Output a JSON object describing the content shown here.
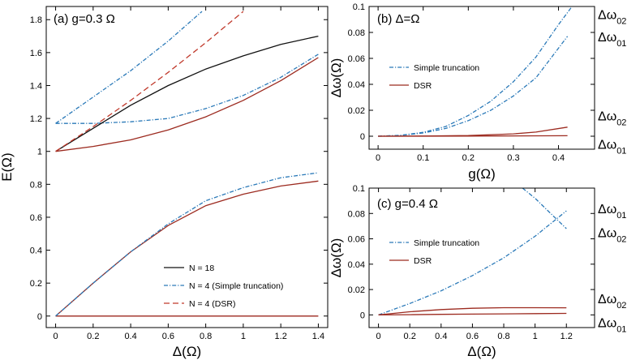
{
  "colors": {
    "black": "#111111",
    "blue": "#2a79b8",
    "red": "#c0392b",
    "darkred": "#9c2a1f"
  },
  "chart_data": [
    {
      "id": "a",
      "type": "line",
      "panel_title": "(a) g=0.3 Ω",
      "xlabel": "Δ(Ω)",
      "ylabel": "E(Ω)",
      "xlim": [
        -0.05,
        1.45
      ],
      "ylim": [
        -0.07,
        1.88
      ],
      "xticks": [
        0,
        0.2,
        0.4,
        0.6,
        0.8,
        1,
        1.2,
        1.4
      ],
      "xtick_labels": [
        "0",
        "0.2",
        "0.4",
        "0.6",
        "0.8",
        "1",
        "1.2",
        "1.4"
      ],
      "yticks": [
        0,
        0.2,
        0.4,
        0.6,
        0.8,
        1,
        1.2,
        1.4,
        1.6,
        1.8
      ],
      "ytick_labels": [
        "0",
        "0.2",
        "0.4",
        "0.6",
        "0.8",
        "1",
        "1.2",
        "1.4",
        "1.6",
        "1.8"
      ],
      "legend": {
        "position": "bottom-right",
        "entries": [
          {
            "label": "N = 18",
            "series": "N18",
            "style": "solid",
            "color": "#111111"
          },
          {
            "label": "N =  4 (Simple truncation)",
            "series": "ST",
            "style": "dashdot",
            "color": "#2a79b8"
          },
          {
            "label": "N =  4 (DSR)",
            "series": "DSR",
            "style": "dashed",
            "color": "#c0392b"
          }
        ]
      },
      "series": [
        {
          "name": "N18 ground",
          "key": "N18",
          "style": "solid",
          "color": "#9c2a1f",
          "x": [
            0,
            1.4
          ],
          "y": [
            0,
            0
          ]
        },
        {
          "name": "N18 E1",
          "key": "N18",
          "style": "solid",
          "color": "#9c2a1f",
          "x": [
            0,
            0.2,
            0.4,
            0.6,
            0.8,
            1.0,
            1.2,
            1.4
          ],
          "y": [
            0,
            0.2,
            0.39,
            0.55,
            0.67,
            0.74,
            0.79,
            0.82
          ]
        },
        {
          "name": "ST E1",
          "key": "ST",
          "style": "dashdot",
          "color": "#2a79b8",
          "x": [
            0,
            0.2,
            0.4,
            0.6,
            0.8,
            1.0,
            1.2,
            1.4
          ],
          "y": [
            0,
            0.2,
            0.39,
            0.56,
            0.7,
            0.78,
            0.84,
            0.87
          ]
        },
        {
          "name": "N18 E2",
          "key": "N18",
          "style": "solid",
          "color": "#9c2a1f",
          "x": [
            0,
            0.2,
            0.4,
            0.6,
            0.8,
            1.0,
            1.2,
            1.4
          ],
          "y": [
            1.0,
            1.03,
            1.07,
            1.13,
            1.21,
            1.31,
            1.43,
            1.57
          ]
        },
        {
          "name": "ST E2",
          "key": "ST",
          "style": "dashdot",
          "color": "#2a79b8",
          "x": [
            0,
            0.2,
            0.4,
            0.6,
            0.8,
            1.0,
            1.2,
            1.4
          ],
          "y": [
            1.17,
            1.17,
            1.18,
            1.2,
            1.26,
            1.34,
            1.45,
            1.59
          ]
        },
        {
          "name": "N18 E3",
          "key": "N18",
          "style": "solid",
          "color": "#111111",
          "x": [
            0,
            0.2,
            0.4,
            0.6,
            0.8,
            1.0,
            1.2,
            1.4
          ],
          "y": [
            1.0,
            1.14,
            1.28,
            1.4,
            1.5,
            1.58,
            1.65,
            1.7
          ]
        },
        {
          "name": "DSR E3",
          "key": "DSR",
          "style": "dashed",
          "color": "#c0392b",
          "x": [
            0,
            0.2,
            0.4,
            0.6,
            0.8,
            1.0
          ],
          "y": [
            1.0,
            1.15,
            1.31,
            1.48,
            1.66,
            1.85
          ]
        },
        {
          "name": "ST E3",
          "key": "ST",
          "style": "dashdot",
          "color": "#2a79b8",
          "x": [
            0,
            0.2,
            0.4,
            0.6,
            0.78
          ],
          "y": [
            1.17,
            1.33,
            1.49,
            1.67,
            1.85
          ]
        }
      ]
    },
    {
      "id": "b",
      "type": "line",
      "panel_title": "(b) Δ=Ω",
      "xlabel": "g(Ω)",
      "ylabel": "Δω(Ω)",
      "xlim": [
        -0.02,
        0.48
      ],
      "ylim": [
        -0.01,
        0.1
      ],
      "xticks": [
        0,
        0.1,
        0.2,
        0.3,
        0.4
      ],
      "xtick_labels": [
        "0",
        "0.1",
        "0.2",
        "0.3",
        "0.4"
      ],
      "yticks": [
        0,
        0.02,
        0.04,
        0.06,
        0.08,
        0.1
      ],
      "ytick_labels": [
        "0",
        "0.02",
        "0.04",
        "0.06",
        "0.08",
        "0.1"
      ],
      "legend": {
        "position": "middle-left",
        "entries": [
          {
            "label": "Simple truncation",
            "style": "dashdot",
            "color": "#2a79b8"
          },
          {
            "label": "DSR",
            "style": "solid",
            "color": "#9c2a1f"
          }
        ]
      },
      "end_labels": [
        "Δω02",
        "Δω01",
        "Δω02",
        "Δω01"
      ],
      "series": [
        {
          "name": "ST Δω02",
          "style": "dashdot",
          "color": "#2a79b8",
          "x": [
            0,
            0.05,
            0.1,
            0.15,
            0.2,
            0.25,
            0.3,
            0.35,
            0.4,
            0.43
          ],
          "y": [
            0,
            0.0007,
            0.003,
            0.0075,
            0.016,
            0.027,
            0.042,
            0.061,
            0.086,
            0.1
          ]
        },
        {
          "name": "ST Δω01",
          "style": "dashdot",
          "color": "#2a79b8",
          "x": [
            0,
            0.05,
            0.1,
            0.15,
            0.2,
            0.25,
            0.3,
            0.35,
            0.42
          ],
          "y": [
            0,
            0.0006,
            0.0025,
            0.006,
            0.012,
            0.02,
            0.031,
            0.045,
            0.077
          ]
        },
        {
          "name": "DSR Δω02",
          "style": "solid",
          "color": "#9c2a1f",
          "x": [
            0,
            0.1,
            0.2,
            0.3,
            0.35,
            0.42
          ],
          "y": [
            0,
            0.0001,
            0.0005,
            0.0018,
            0.0032,
            0.007
          ]
        },
        {
          "name": "DSR Δω01",
          "style": "solid",
          "color": "#9c2a1f",
          "x": [
            0,
            0.2,
            0.42
          ],
          "y": [
            0,
            0.0001,
            0.0004
          ]
        }
      ]
    },
    {
      "id": "c",
      "type": "line",
      "panel_title": "(c) g=0.4 Ω",
      "xlabel": "Δ(Ω)",
      "ylabel": "Δω(Ω)",
      "xlim": [
        -0.06,
        1.38
      ],
      "ylim": [
        -0.01,
        0.1
      ],
      "xticks": [
        0,
        0.2,
        0.4,
        0.6,
        0.8,
        1,
        1.2
      ],
      "xtick_labels": [
        "0",
        "0.2",
        "0.4",
        "0.6",
        "0.8",
        "1",
        "1.2"
      ],
      "yticks": [
        0,
        0.02,
        0.04,
        0.06,
        0.08,
        0.1
      ],
      "ytick_labels": [
        "0",
        "0.02",
        "0.04",
        "0.06",
        "0.08",
        "0.1"
      ],
      "legend": {
        "position": "middle-left",
        "entries": [
          {
            "label": "Simple truncation",
            "style": "dashdot",
            "color": "#2a79b8"
          },
          {
            "label": "DSR",
            "style": "solid",
            "color": "#9c2a1f"
          }
        ]
      },
      "end_labels": [
        "Δω01",
        "Δω02",
        "Δω02",
        "Δω01"
      ],
      "series": [
        {
          "name": "ST Δω02",
          "style": "dashdot",
          "color": "#2a79b8",
          "x": [
            0.92,
            1.0,
            1.1,
            1.2
          ],
          "y": [
            0.1,
            0.092,
            0.08,
            0.068
          ]
        },
        {
          "name": "ST Δω01",
          "style": "dashdot",
          "color": "#2a79b8",
          "x": [
            0,
            0.2,
            0.4,
            0.6,
            0.8,
            1.0,
            1.2
          ],
          "y": [
            0,
            0.009,
            0.019,
            0.031,
            0.045,
            0.062,
            0.082
          ]
        },
        {
          "name": "DSR Δω02",
          "style": "solid",
          "color": "#9c2a1f",
          "x": [
            0,
            0.2,
            0.4,
            0.6,
            0.8,
            1.0,
            1.2
          ],
          "y": [
            0,
            0.0025,
            0.0042,
            0.0052,
            0.0057,
            0.0057,
            0.0056
          ]
        },
        {
          "name": "DSR Δω01",
          "style": "solid",
          "color": "#9c2a1f",
          "x": [
            0,
            0.2,
            0.4,
            0.6,
            0.8,
            1.0,
            1.2
          ],
          "y": [
            0,
            0.0002,
            0.0004,
            0.0006,
            0.0008,
            0.001,
            0.0012
          ]
        }
      ]
    }
  ]
}
